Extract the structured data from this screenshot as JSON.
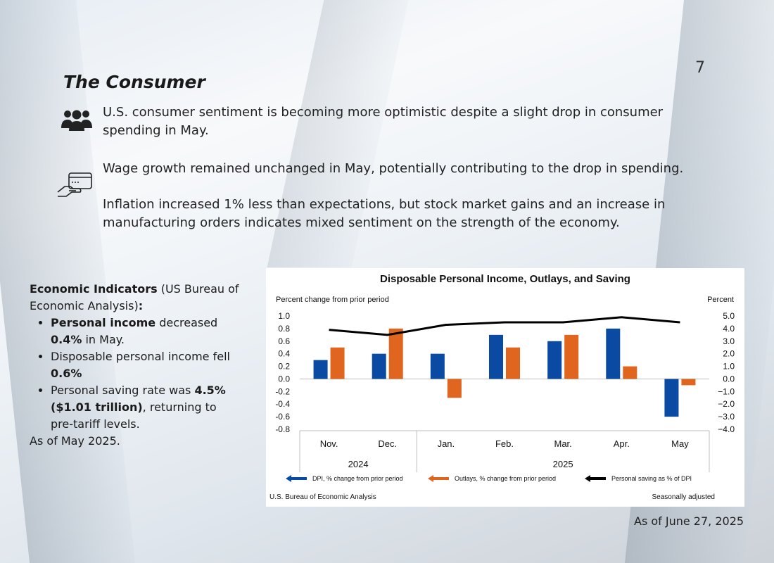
{
  "page": {
    "number": "7",
    "title": "The Consumer",
    "paragraphs": [
      "U.S. consumer sentiment is becoming more optimistic despite a slight drop in consumer spending in May.",
      "Wage growth remained unchanged in May, potentially contributing to the drop in spending.",
      "Inflation increased 1% less than expectations, but stock market gains and an increase in manufacturing orders indicates mixed sentiment on the strength of the economy."
    ],
    "icons": [
      "people-group-icon",
      "hand-card-icon"
    ],
    "as_of": "As of June 27, 2025"
  },
  "indicators": {
    "heading_bold": "Economic Indicators",
    "heading_rest": " (US Bureau of Economic Analysis)",
    "heading_colon": ":",
    "item1": {
      "bold": "Personal income",
      "rest": " decreased ",
      "value": "0.4%",
      "tail": " in May."
    },
    "item2": {
      "text": "Disposable personal income fell ",
      "value": "0.6%"
    },
    "item3": {
      "text": "Personal saving rate was ",
      "value": "4.5% ($1.01 trillion)",
      "tail": ", returning to pre-tariff levels."
    },
    "footer": "As of May 2025."
  },
  "chart_data": {
    "type": "bar",
    "title": "Disposable Personal Income, Outlays, and Saving",
    "ylabel_left": "Percent change from prior period",
    "ylabel_right": "Percent",
    "categories": [
      "Nov.",
      "Dec.",
      "Jan.",
      "Feb.",
      "Mar.",
      "Apr.",
      "May"
    ],
    "year_groups": [
      {
        "label": "2024",
        "categories": [
          "Nov.",
          "Dec."
        ]
      },
      {
        "label": "2025",
        "categories": [
          "Jan.",
          "Feb.",
          "Mar.",
          "Apr.",
          "May"
        ]
      }
    ],
    "ylim_left": [
      -0.8,
      1.0
    ],
    "yticks_left": [
      "1.0",
      "0.8",
      "0.6",
      "0.4",
      "0.2",
      "0.0",
      "-0.2",
      "-0.4",
      "-0.6",
      "-0.8"
    ],
    "ylim_right": [
      -4.0,
      5.0
    ],
    "yticks_right": [
      "5.0",
      "4.0",
      "3.0",
      "2.0",
      "1.0",
      "0.0",
      "−1.0",
      "−2.0",
      "−3.0",
      "−4.0"
    ],
    "series": [
      {
        "name": "DPI, % change from prior period",
        "kind": "bar",
        "axis": "left",
        "color": "#0b4aa2",
        "values": [
          0.3,
          0.4,
          0.4,
          0.7,
          0.6,
          0.8,
          -0.6
        ]
      },
      {
        "name": "Outlays, % change from prior period",
        "kind": "bar",
        "axis": "left",
        "color": "#e0661f",
        "values": [
          0.5,
          0.8,
          -0.3,
          0.5,
          0.7,
          0.2,
          -0.1
        ]
      },
      {
        "name": "Personal saving as % of DPI",
        "kind": "line",
        "axis": "right",
        "color": "#000000",
        "values": [
          3.9,
          3.5,
          4.3,
          4.5,
          4.5,
          4.9,
          4.5
        ]
      }
    ],
    "source": "U.S. Bureau of Economic Analysis",
    "note": "Seasonally adjusted"
  }
}
